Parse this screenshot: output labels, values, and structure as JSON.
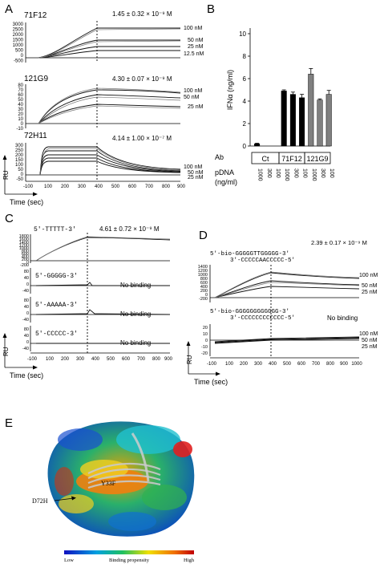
{
  "panel_letters": [
    "A",
    "B",
    "C",
    "D",
    "E"
  ],
  "axis_common": {
    "ylabel": "RU",
    "xlabel": "Time (sec)",
    "xticks": [
      "-100",
      "100",
      "200",
      "300",
      "400",
      "500",
      "600",
      "700",
      "800",
      "900"
    ],
    "xticks_d": [
      "-100",
      "100",
      "200",
      "300",
      "400",
      "500",
      "600",
      "700",
      "800",
      "900",
      "1000"
    ]
  },
  "panelA": [
    {
      "name": "71F12",
      "kd": "1.45 ± 0.32 × 10⁻⁹ M",
      "yticks": [
        "3000",
        "2500",
        "2000",
        "1500",
        "1000",
        "500",
        "0",
        "-500"
      ],
      "conc": [
        "100 nM",
        "50 nM",
        "25 nM",
        "12.5 nM"
      ]
    },
    {
      "name": "121G9",
      "kd": "4.30 ± 0.07 × 10⁻⁹ M",
      "yticks": [
        "80",
        "70",
        "60",
        "50",
        "40",
        "30",
        "20",
        "10",
        "0",
        "-10"
      ],
      "conc": [
        "100 nM",
        "50 nM",
        "25 nM"
      ]
    },
    {
      "name": "72H11",
      "kd": "4.14 ± 1.00 × 10⁻⁷ M",
      "yticks": [
        "300",
        "250",
        "200",
        "150",
        "100",
        "50",
        "0",
        "-50"
      ],
      "conc": [
        "100 nM",
        "50 nM",
        "25 nM"
      ]
    }
  ],
  "panelC": {
    "kd": "4.61 ± 0.72 × 10⁻⁹ M",
    "yticks_top": [
      "1800",
      "1600",
      "1400",
      "1200",
      "1000",
      "800",
      "600",
      "400",
      "200",
      "0",
      "-200"
    ],
    "traces": [
      {
        "seq": "5'-TTTTT-3'",
        "note": ""
      },
      {
        "seq": "5'-GGGGG-3'",
        "note": "No binding"
      },
      {
        "seq": "5'-AAAAA-3'",
        "note": "No binding"
      },
      {
        "seq": "5'-CCCCC-3'",
        "note": "No binding"
      }
    ],
    "yticks_small": [
      "80",
      "40",
      "0",
      "-40"
    ]
  },
  "panelD": {
    "kd": "2.39 ± 0.17 × 10⁻⁹ M",
    "top": {
      "line1": "5'-bio-GGGGGTTGGGGG-3'",
      "line2": "3'-CCCCCAACCCCC-5'",
      "conc": [
        "100 nM",
        "50 nM",
        "25 nM"
      ],
      "yticks": [
        "1400",
        "1200",
        "1000",
        "800",
        "600",
        "400",
        "200",
        "0",
        "-200"
      ]
    },
    "bottom": {
      "line1": "5'-bio-GGGGGGGGGGGG-3'",
      "line2": "3'-CCCCCCCCCCCC-5'",
      "note": "No binding",
      "conc": [
        "100 nM",
        "50 nM",
        "25 nM"
      ],
      "yticks": [
        "20",
        "10",
        "0",
        "-10",
        "-20"
      ]
    }
  },
  "panelB": {
    "ylabel": "IFNα (ng/ml)",
    "ab_label": "Ab",
    "groups": [
      "Ct",
      "71F12",
      "121G9"
    ],
    "pdna_label": "pDNA",
    "pdna_unit": "(ng/ml)",
    "pdna_ticks": [
      "1000",
      "300",
      "100",
      "1000",
      "300",
      "100",
      "1000",
      "300",
      "100"
    ]
  },
  "panelE": {
    "residue1": "D72H",
    "residue2": "Y33F",
    "legend_low": "Low",
    "legend_mid": "Binding propensity",
    "legend_high": "High"
  },
  "chart_data": {
    "type": "bar",
    "categories": [
      "Ct 1000",
      "Ct 300",
      "Ct 100",
      "71F12 1000",
      "71F12 300",
      "71F12 100",
      "121G9 1000",
      "121G9 300",
      "121G9 100"
    ],
    "values": [
      0.2,
      0.0,
      0.0,
      4.9,
      4.6,
      4.3,
      6.4,
      4.1,
      4.6
    ],
    "errors": [
      0.05,
      0,
      0,
      0.1,
      0.2,
      0.3,
      0.5,
      0.1,
      0.35
    ],
    "bar_colors": [
      "#000000",
      "#000000",
      "#000000",
      "#000000",
      "#000000",
      "#000000",
      "#808080",
      "#808080",
      "#808080"
    ],
    "ylabel": "IFNα (ng/ml)",
    "ylim": [
      0,
      10
    ],
    "yticks": [
      0,
      2,
      4,
      6,
      8,
      10
    ]
  }
}
